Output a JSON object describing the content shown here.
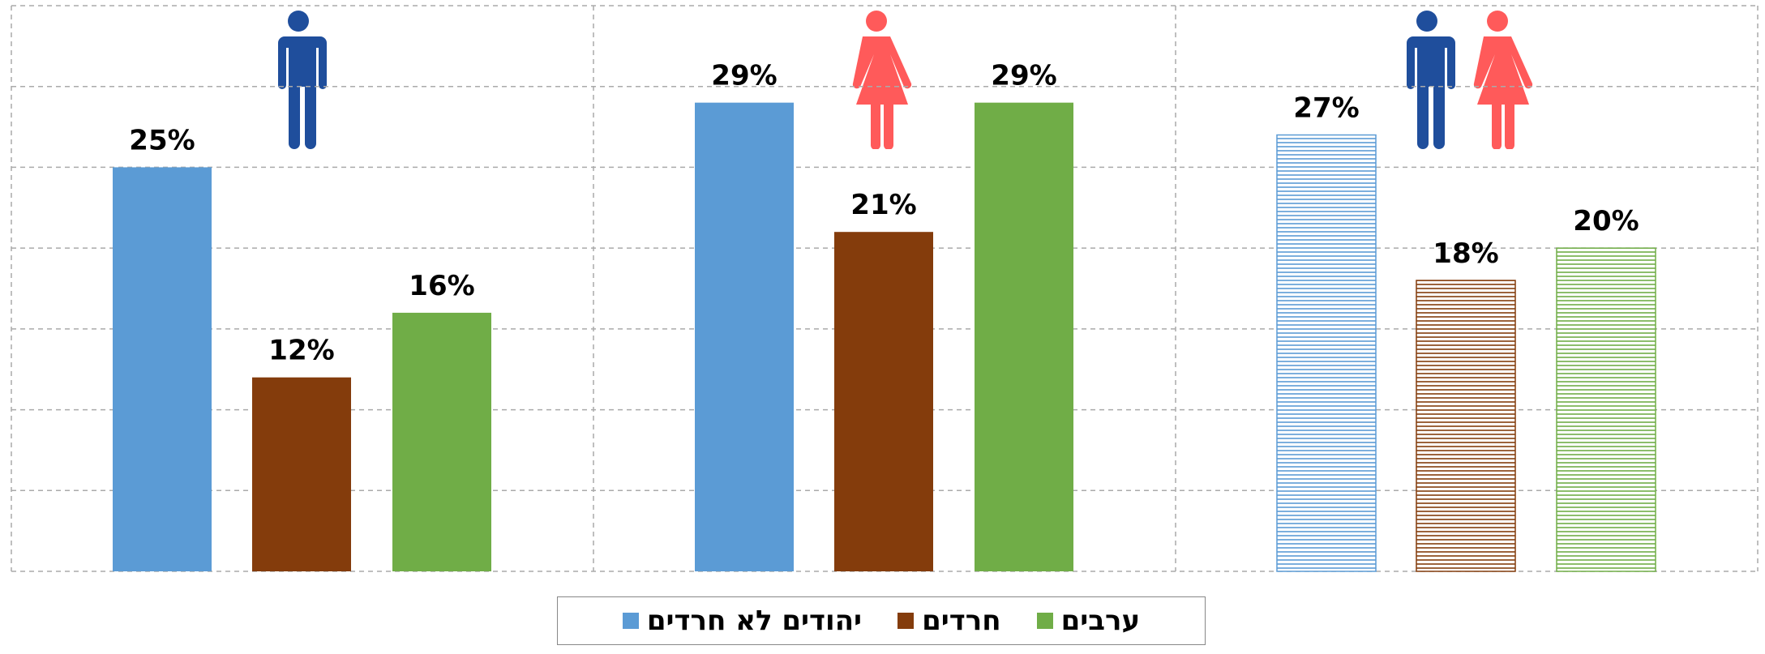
{
  "chart_data": {
    "type": "bar",
    "categories": [
      null,
      null,
      null
    ],
    "series": [
      {
        "name": "יהודים לא חרדים",
        "color": "#5b9bd5",
        "values": [
          25,
          29,
          27
        ],
        "value_labels": [
          "25%",
          "29%",
          "27%"
        ]
      },
      {
        "name": "חרדים",
        "color": "#843c0c",
        "values": [
          12,
          21,
          18
        ],
        "value_labels": [
          "12%",
          "21%",
          "18%"
        ]
      },
      {
        "name": "ערבים",
        "color": "#70ad47",
        "values": [
          16,
          29,
          20
        ],
        "value_labels": [
          "16%",
          "29%",
          "20%"
        ]
      }
    ],
    "category_styles": [
      "solid",
      "solid",
      "hatched"
    ],
    "ylim": [
      0,
      35
    ],
    "yticks": [
      0,
      5,
      10,
      15,
      20,
      25,
      30,
      35
    ],
    "grid": true,
    "legend": "bottom"
  }
}
